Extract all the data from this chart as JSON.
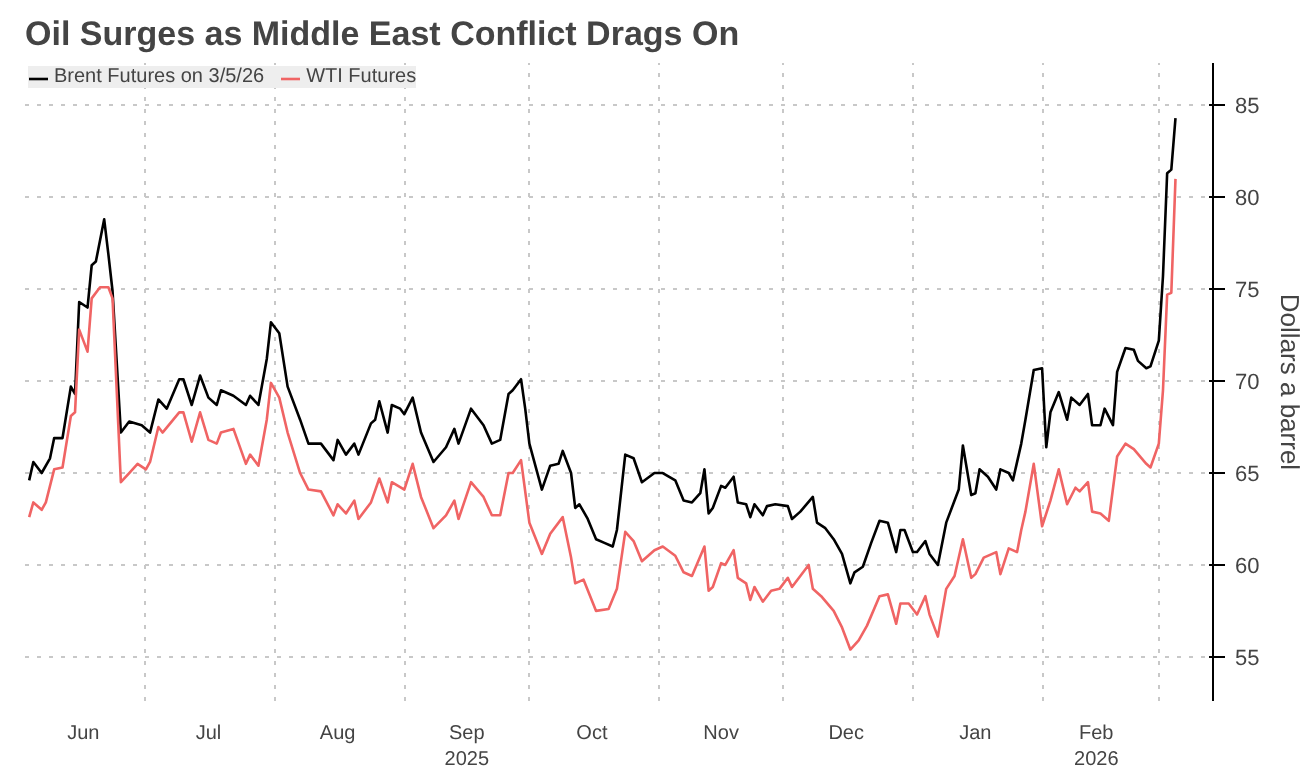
{
  "chart_data": {
    "type": "line",
    "title": "Oil Surges as Middle East Conflict Drags On",
    "y2label": "Dollars a barrel",
    "legend": "top left",
    "grid": true,
    "xlim": [
      "2025-06-02",
      "2026-03-14"
    ],
    "ylim": [
      52.6,
      87.3
    ],
    "yticks": [
      55,
      60,
      65,
      70,
      75,
      80,
      85
    ],
    "xticks": [
      {
        "value": "2025-06-16",
        "label": "Jun"
      },
      {
        "value": "2025-07-01",
        "label": null
      },
      {
        "value": "2025-07-16",
        "label": "Jul"
      },
      {
        "value": "2025-08-01",
        "label": null
      },
      {
        "value": "2025-08-16",
        "label": "Aug"
      },
      {
        "value": "2025-09-01",
        "label": null
      },
      {
        "value": "2025-09-16",
        "label": "Sep\n2025"
      },
      {
        "value": "2025-10-01",
        "label": null
      },
      {
        "value": "2025-10-16",
        "label": "Oct"
      },
      {
        "value": "2025-11-01",
        "label": null
      },
      {
        "value": "2025-11-16",
        "label": "Nov"
      },
      {
        "value": "2025-12-01",
        "label": null
      },
      {
        "value": "2025-12-16",
        "label": "Dec"
      },
      {
        "value": "2026-01-01",
        "label": null
      },
      {
        "value": "2026-01-16",
        "label": "Jan"
      },
      {
        "value": "2026-02-01",
        "label": null
      },
      {
        "value": "2026-02-14",
        "label": "Feb\n2026"
      },
      {
        "value": "2026-03-01",
        "label": null
      }
    ],
    "series": [
      {
        "name": "Brent Futures on 3/5/26",
        "color": "#000000",
        "x": [
          "2025-06-03",
          "2025-06-04",
          "2025-06-06",
          "2025-06-08",
          "2025-06-09",
          "2025-06-11",
          "2025-06-13",
          "2025-06-14",
          "2025-06-15",
          "2025-06-17",
          "2025-06-18",
          "2025-06-19",
          "2025-06-21",
          "2025-06-22",
          "2025-06-23",
          "2025-06-25",
          "2025-06-27",
          "2025-06-30",
          "2025-07-02",
          "2025-07-04",
          "2025-07-06",
          "2025-07-09",
          "2025-07-10",
          "2025-07-12",
          "2025-07-14",
          "2025-07-16",
          "2025-07-18",
          "2025-07-19",
          "2025-07-22",
          "2025-07-25",
          "2025-07-26",
          "2025-07-28",
          "2025-07-30",
          "2025-07-31",
          "2025-08-02",
          "2025-08-04",
          "2025-08-07",
          "2025-08-09",
          "2025-08-12",
          "2025-08-15",
          "2025-08-16",
          "2025-08-18",
          "2025-08-20",
          "2025-08-21",
          "2025-08-24",
          "2025-08-25",
          "2025-08-26",
          "2025-08-28",
          "2025-08-29",
          "2025-08-31",
          "2025-09-01",
          "2025-09-03",
          "2025-09-05",
          "2025-09-08",
          "2025-09-11",
          "2025-09-13",
          "2025-09-14",
          "2025-09-17",
          "2025-09-20",
          "2025-09-22",
          "2025-09-24",
          "2025-09-26",
          "2025-09-27",
          "2025-09-29",
          "2025-09-30",
          "2025-10-01",
          "2025-10-04",
          "2025-10-06",
          "2025-10-08",
          "2025-10-09",
          "2025-10-11",
          "2025-10-12",
          "2025-10-13",
          "2025-10-15",
          "2025-10-17",
          "2025-10-19",
          "2025-10-21",
          "2025-10-22",
          "2025-10-24",
          "2025-10-26",
          "2025-10-28",
          "2025-10-31",
          "2025-11-02",
          "2025-11-05",
          "2025-11-07",
          "2025-11-09",
          "2025-11-11",
          "2025-11-12",
          "2025-11-13",
          "2025-11-14",
          "2025-11-16",
          "2025-11-17",
          "2025-11-19",
          "2025-11-20",
          "2025-11-22",
          "2025-11-23",
          "2025-11-24",
          "2025-11-26",
          "2025-11-27",
          "2025-11-29",
          "2025-12-02",
          "2025-12-03",
          "2025-12-05",
          "2025-12-08",
          "2025-12-09",
          "2025-12-11",
          "2025-12-13",
          "2025-12-15",
          "2025-12-17",
          "2025-12-18",
          "2025-12-20",
          "2025-12-22",
          "2025-12-24",
          "2025-12-26",
          "2025-12-28",
          "2025-12-29",
          "2025-12-30",
          "2026-01-01",
          "2026-01-02",
          "2026-01-04",
          "2026-01-05",
          "2026-01-07",
          "2026-01-09",
          "2026-01-12",
          "2026-01-13",
          "2026-01-15",
          "2026-01-16",
          "2026-01-17",
          "2026-01-19",
          "2026-01-21",
          "2026-01-22",
          "2026-01-24",
          "2026-01-25",
          "2026-01-27",
          "2026-01-28",
          "2026-01-30",
          "2026-02-01",
          "2026-02-02",
          "2026-02-03",
          "2026-02-05",
          "2026-02-07",
          "2026-02-08",
          "2026-02-10",
          "2026-02-12",
          "2026-02-13",
          "2026-02-15",
          "2026-02-16",
          "2026-02-18",
          "2026-02-19",
          "2026-02-21",
          "2026-02-23",
          "2026-02-24",
          "2026-02-26",
          "2026-02-27",
          "2026-03-01",
          "2026-03-02",
          "2026-03-03",
          "2026-03-04",
          "2026-03-05"
        ],
        "values": [
          64.6,
          65.6,
          65.0,
          65.8,
          66.9,
          66.9,
          69.7,
          69.3,
          74.3,
          74.0,
          76.3,
          76.5,
          78.8,
          76.9,
          74.9,
          67.2,
          67.8,
          67.6,
          67.2,
          69.0,
          68.5,
          70.1,
          70.1,
          68.7,
          70.3,
          69.1,
          68.7,
          69.5,
          69.2,
          68.7,
          69.2,
          68.7,
          71.2,
          73.2,
          72.6,
          69.7,
          67.9,
          66.6,
          66.6,
          65.7,
          66.8,
          66.0,
          66.6,
          66.0,
          67.7,
          67.9,
          68.9,
          67.2,
          68.7,
          68.5,
          68.2,
          69.1,
          67.2,
          65.6,
          66.4,
          67.4,
          66.6,
          68.5,
          67.6,
          66.6,
          66.8,
          69.3,
          69.5,
          70.1,
          68.5,
          66.6,
          64.1,
          65.4,
          65.5,
          66.2,
          65.0,
          63.1,
          63.3,
          62.5,
          61.4,
          61.2,
          61.0,
          61.9,
          66.0,
          65.8,
          64.5,
          65.0,
          65.0,
          64.6,
          63.5,
          63.4,
          63.9,
          65.2,
          62.8,
          63.1,
          64.3,
          64.2,
          64.8,
          63.4,
          63.3,
          62.6,
          63.3,
          62.7,
          63.2,
          63.3,
          63.2,
          62.5,
          62.9,
          63.7,
          62.3,
          62.0,
          61.4,
          60.6,
          59.0,
          59.6,
          59.9,
          61.2,
          62.4,
          62.3,
          60.7,
          61.9,
          61.9,
          60.7,
          60.7,
          61.3,
          60.6,
          60.0,
          62.3,
          64.1,
          66.5,
          63.8,
          63.9,
          65.2,
          64.8,
          64.1,
          65.2,
          65.0,
          64.6,
          66.6,
          67.9,
          70.6,
          70.7,
          66.4,
          68.3,
          69.4,
          67.9,
          69.1,
          68.7,
          69.3,
          67.6,
          67.6,
          68.5,
          67.6,
          70.5,
          71.8,
          71.7,
          71.1,
          70.7,
          70.8,
          72.2,
          75.7,
          81.3,
          81.5,
          84.3
        ]
      },
      {
        "name": "WTI Futures",
        "color": "#f06464",
        "x": [
          "2025-06-03",
          "2025-06-04",
          "2025-06-06",
          "2025-06-07",
          "2025-06-09",
          "2025-06-11",
          "2025-06-13",
          "2025-06-14",
          "2025-06-15",
          "2025-06-17",
          "2025-06-18",
          "2025-06-20",
          "2025-06-22",
          "2025-06-23",
          "2025-06-25",
          "2025-06-27",
          "2025-06-29",
          "2025-07-01",
          "2025-07-02",
          "2025-07-04",
          "2025-07-05",
          "2025-07-09",
          "2025-07-10",
          "2025-07-12",
          "2025-07-14",
          "2025-07-16",
          "2025-07-18",
          "2025-07-19",
          "2025-07-22",
          "2025-07-25",
          "2025-07-26",
          "2025-07-28",
          "2025-07-30",
          "2025-07-31",
          "2025-08-02",
          "2025-08-04",
          "2025-08-07",
          "2025-08-09",
          "2025-08-12",
          "2025-08-15",
          "2025-08-16",
          "2025-08-18",
          "2025-08-20",
          "2025-08-21",
          "2025-08-24",
          "2025-08-26",
          "2025-08-28",
          "2025-08-29",
          "2025-09-01",
          "2025-09-03",
          "2025-09-05",
          "2025-09-08",
          "2025-09-11",
          "2025-09-13",
          "2025-09-14",
          "2025-09-17",
          "2025-09-20",
          "2025-09-22",
          "2025-09-24",
          "2025-09-26",
          "2025-09-27",
          "2025-09-29",
          "2025-10-01",
          "2025-10-04",
          "2025-10-06",
          "2025-10-09",
          "2025-10-11",
          "2025-10-12",
          "2025-10-14",
          "2025-10-17",
          "2025-10-20",
          "2025-10-22",
          "2025-10-24",
          "2025-10-26",
          "2025-10-28",
          "2025-10-31",
          "2025-11-02",
          "2025-11-05",
          "2025-11-07",
          "2025-11-09",
          "2025-11-12",
          "2025-11-13",
          "2025-11-14",
          "2025-11-16",
          "2025-11-17",
          "2025-11-19",
          "2025-11-20",
          "2025-11-22",
          "2025-11-23",
          "2025-11-24",
          "2025-11-26",
          "2025-11-28",
          "2025-11-30",
          "2025-12-02",
          "2025-12-03",
          "2025-12-05",
          "2025-12-07",
          "2025-12-08",
          "2025-12-10",
          "2025-12-13",
          "2025-12-15",
          "2025-12-17",
          "2025-12-19",
          "2025-12-21",
          "2025-12-24",
          "2025-12-26",
          "2025-12-28",
          "2025-12-29",
          "2025-12-31",
          "2026-01-02",
          "2026-01-04",
          "2026-01-05",
          "2026-01-07",
          "2026-01-09",
          "2026-01-11",
          "2026-01-13",
          "2026-01-15",
          "2026-01-16",
          "2026-01-18",
          "2026-01-21",
          "2026-01-22",
          "2026-01-24",
          "2026-01-26",
          "2026-01-27",
          "2026-01-28",
          "2026-01-30",
          "2026-02-01",
          "2026-02-03",
          "2026-02-05",
          "2026-02-07",
          "2026-02-09",
          "2026-02-10",
          "2026-02-12",
          "2026-02-13",
          "2026-02-15",
          "2026-02-17",
          "2026-02-19",
          "2026-02-21",
          "2026-02-23",
          "2026-02-26",
          "2026-02-27",
          "2026-03-01",
          "2026-03-02",
          "2026-03-03",
          "2026-03-04",
          "2026-03-05"
        ],
        "values": [
          62.6,
          63.4,
          63.0,
          63.4,
          65.2,
          65.3,
          68.1,
          68.3,
          72.8,
          71.6,
          74.5,
          75.1,
          75.1,
          74.5,
          64.5,
          65.0,
          65.5,
          65.2,
          65.6,
          67.5,
          67.2,
          68.3,
          68.3,
          66.7,
          68.3,
          66.8,
          66.6,
          67.2,
          67.4,
          65.5,
          66.0,
          65.4,
          67.9,
          69.9,
          69.1,
          67.2,
          65.0,
          64.1,
          64.0,
          62.7,
          63.3,
          62.8,
          63.5,
          62.5,
          63.4,
          64.7,
          63.4,
          64.5,
          64.1,
          65.5,
          63.7,
          62.0,
          62.7,
          63.5,
          62.5,
          64.5,
          63.7,
          62.7,
          62.7,
          65.0,
          65.0,
          65.7,
          62.3,
          60.6,
          61.7,
          62.6,
          60.4,
          59.0,
          59.2,
          57.5,
          57.6,
          58.7,
          61.8,
          61.3,
          60.2,
          60.8,
          61.0,
          60.5,
          59.6,
          59.4,
          61.0,
          58.6,
          58.8,
          60.1,
          60.0,
          60.8,
          59.3,
          59.0,
          58.1,
          58.8,
          58.0,
          58.6,
          58.7,
          59.3,
          58.8,
          59.4,
          60.0,
          58.7,
          58.3,
          57.5,
          56.6,
          55.4,
          55.9,
          56.7,
          58.3,
          58.4,
          56.8,
          57.9,
          57.9,
          57.3,
          58.3,
          57.3,
          56.1,
          58.7,
          59.4,
          61.4,
          59.3,
          59.5,
          60.4,
          60.7,
          59.5,
          60.9,
          60.7,
          61.9,
          62.9,
          65.5,
          62.1,
          63.5,
          65.2,
          63.3,
          64.2,
          64.0,
          64.5,
          62.9,
          62.8,
          62.4,
          65.9,
          66.6,
          66.3,
          65.5,
          65.3,
          66.6,
          69.5,
          74.7,
          74.8,
          81.0
        ]
      }
    ]
  }
}
